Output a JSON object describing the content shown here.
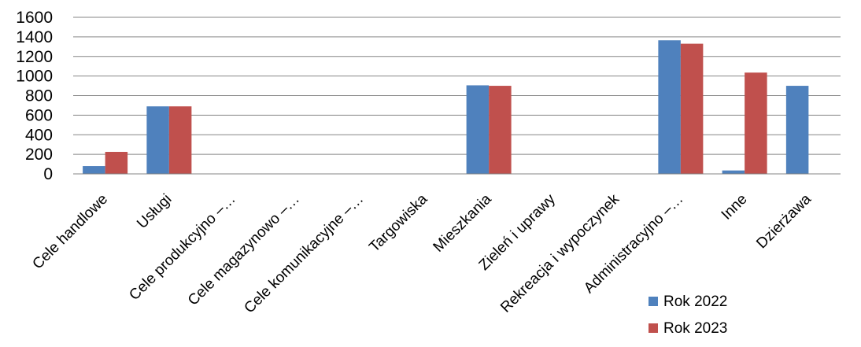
{
  "chart_data": {
    "type": "bar",
    "categories": [
      "Cele handlowe",
      "Usługi",
      "Cele produkcyjno –…",
      "Cele magazynowo –…",
      "Cele komunikacyjne –…",
      "Targowiska",
      "Mieszkania",
      "Zieleń i uprawy",
      "Rekreacja i wypoczynek",
      "Administracyjno –…",
      "Inne",
      "Dzierżawa"
    ],
    "series": [
      {
        "name": "Rok 2022",
        "color": "#4F81BD",
        "values": [
          80,
          690,
          0,
          0,
          0,
          0,
          905,
          0,
          0,
          1365,
          35,
          900
        ]
      },
      {
        "name": "Rok 2023",
        "color": "#C0504D",
        "values": [
          225,
          690,
          0,
          0,
          0,
          0,
          900,
          0,
          0,
          1330,
          1035,
          0
        ]
      }
    ],
    "y_ticks": [
      "0",
      "200",
      "400",
      "600",
      "800",
      "1000",
      "1200",
      "1400",
      "1600"
    ],
    "ylim": [
      0,
      1600
    ],
    "grid": true,
    "legend_position": "bottom-right",
    "title": "",
    "xlabel": "",
    "ylabel": ""
  }
}
